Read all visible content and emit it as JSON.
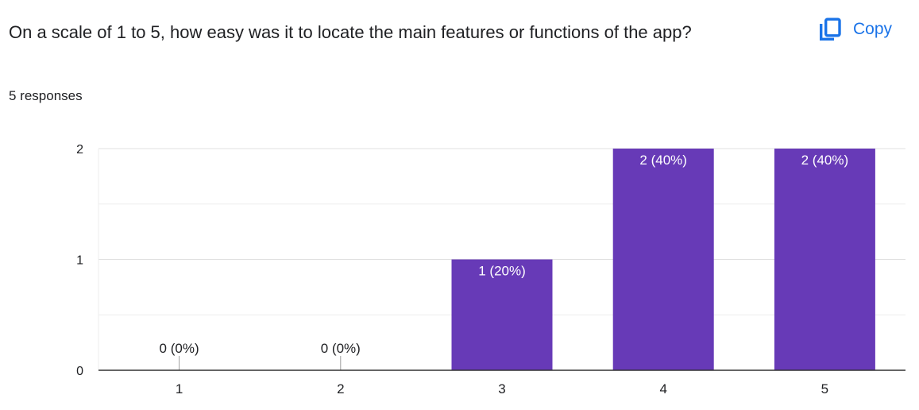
{
  "question": {
    "title": "On a scale of 1 to 5, how easy was it to locate the main features or functions of the app?",
    "responses": "5 responses"
  },
  "copy_button": {
    "label": "Copy",
    "icon": "copy-icon",
    "color": "#1a73e8"
  },
  "chart_data": {
    "type": "bar",
    "categories": [
      "1",
      "2",
      "3",
      "4",
      "5"
    ],
    "values": [
      0,
      0,
      1,
      2,
      2
    ],
    "data_labels": [
      "0 (0%)",
      "0 (0%)",
      "1 (20%)",
      "2 (40%)",
      "2 (40%)"
    ],
    "ylim": [
      0,
      2
    ],
    "yticks": [
      "0",
      "1",
      "2"
    ],
    "grid": true,
    "bar_color": "#673ab7"
  }
}
